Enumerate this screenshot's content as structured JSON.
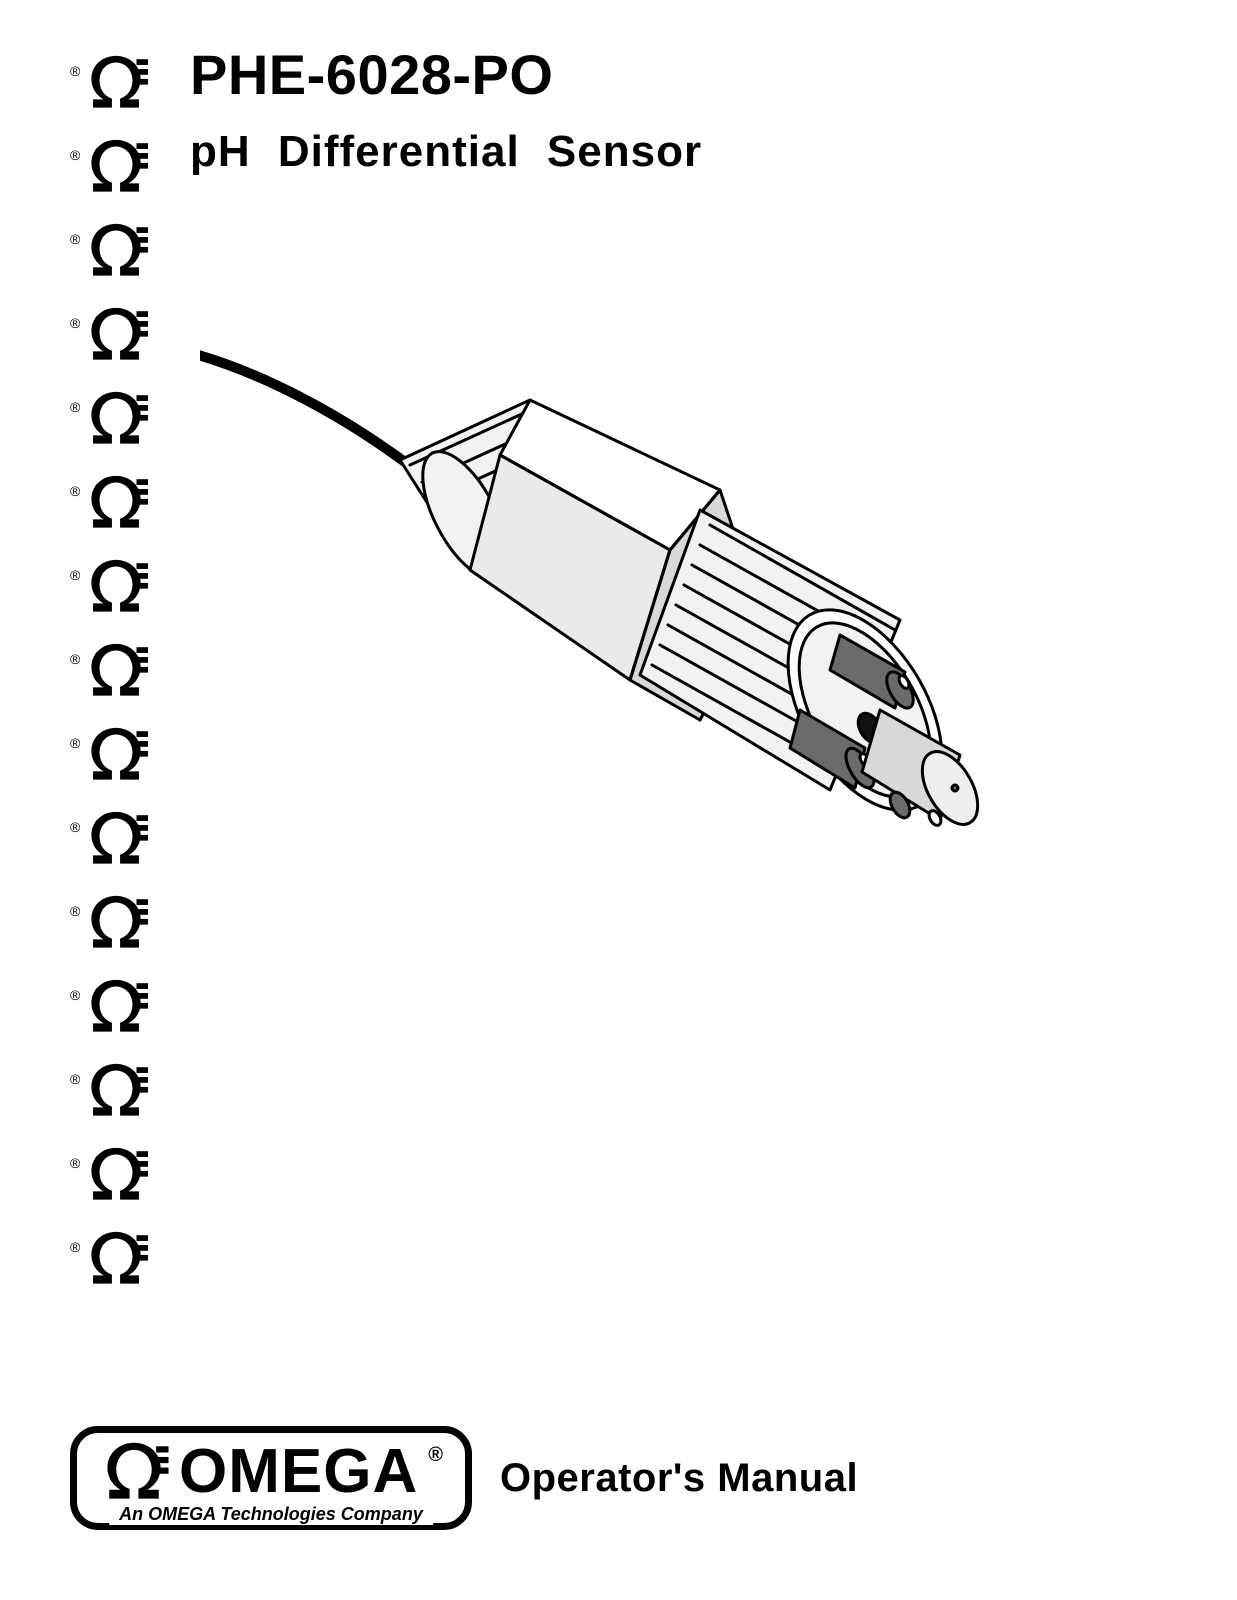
{
  "header": {
    "model": "PHE-6028-PO",
    "subtitle": "pH Differential Sensor"
  },
  "sidebar": {
    "reg_mark": "®",
    "logo_count": 15
  },
  "illustration": {
    "alt": "pH differential sensor probe line drawing",
    "stroke": "#000000",
    "fill_light": "#f2f2f2",
    "fill_mid": "#d8d8d8",
    "fill_dark": "#6a6a6a",
    "fill_black": "#111111"
  },
  "footer": {
    "brand": "OMEGA",
    "brand_reg": "®",
    "tagline": "An OMEGA Technologies Company",
    "right_text": "Operator's Manual"
  },
  "colors": {
    "text": "#000000",
    "background": "#ffffff"
  }
}
